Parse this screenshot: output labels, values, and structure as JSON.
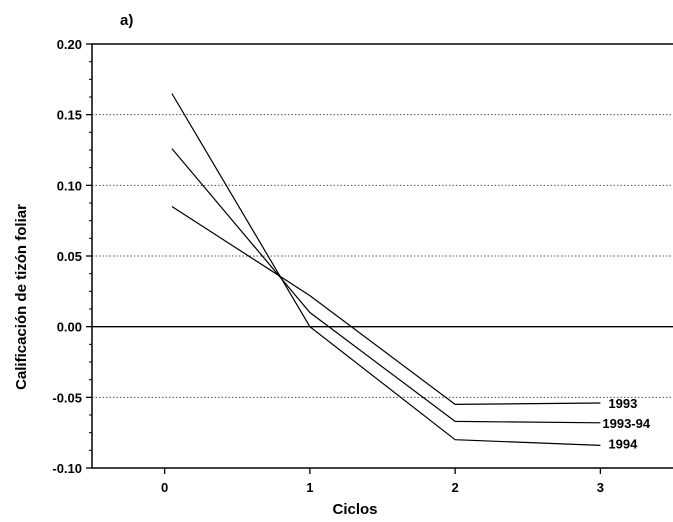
{
  "chart_data": {
    "type": "line",
    "panel_label": "a)",
    "title": "",
    "xlabel": "Ciclos",
    "ylabel": "Calificación de tizón foliar",
    "xlim": [
      -0.5,
      3.5
    ],
    "ylim": [
      -0.1,
      0.2
    ],
    "x_ticks": [
      0,
      1,
      2,
      3
    ],
    "x_tick_labels": [
      "0",
      "1",
      "2",
      "3"
    ],
    "y_ticks": [
      -0.1,
      -0.05,
      0.0,
      0.05,
      0.1,
      0.15,
      0.2
    ],
    "y_tick_labels": [
      "-0.10",
      "-0.05",
      "0.00",
      "0.05",
      "0.10",
      "0.15",
      "0.20"
    ],
    "grid": "horizontal dotted",
    "series": [
      {
        "name": "1993",
        "x": [
          0.05,
          1,
          2,
          3
        ],
        "y": [
          0.085,
          0.022,
          -0.055,
          -0.054
        ]
      },
      {
        "name": "1993-94",
        "x": [
          0.05,
          1,
          2,
          3
        ],
        "y": [
          0.126,
          0.01,
          -0.067,
          -0.068
        ]
      },
      {
        "name": "1994",
        "x": [
          0.05,
          1,
          2,
          3
        ],
        "y": [
          0.165,
          0.0,
          -0.08,
          -0.084
        ]
      }
    ]
  }
}
